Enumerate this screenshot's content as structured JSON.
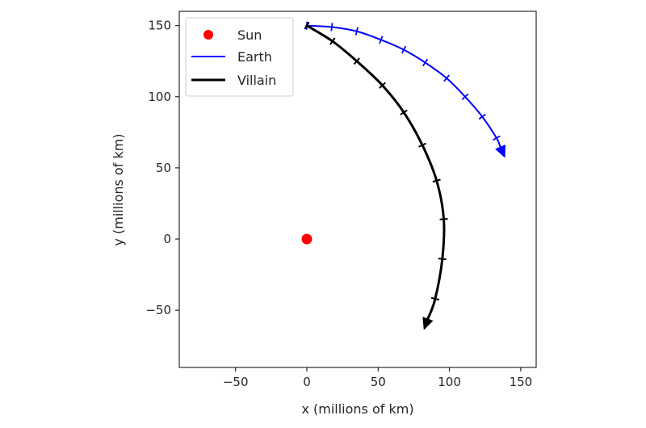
{
  "chart_data": {
    "type": "line",
    "title": "",
    "xlabel": "x (millions of km)",
    "ylabel": "y (millions of km)",
    "xlim": [
      -90,
      160
    ],
    "ylim": [
      -90,
      160
    ],
    "x_ticks": [
      -50,
      0,
      50,
      100,
      150
    ],
    "x_tick_labels": [
      "−50",
      "0",
      "50",
      "100",
      "150"
    ],
    "y_ticks": [
      -50,
      0,
      50,
      100,
      150
    ],
    "y_tick_labels": [
      "−50",
      "0",
      "50",
      "100",
      "150"
    ],
    "grid": false,
    "legend_position": "upper left",
    "legend": [
      "Sun",
      "Earth",
      "Villain"
    ],
    "series": [
      {
        "name": "Sun",
        "kind": "scatter",
        "color": "#ff0000",
        "points": [
          [
            0,
            0
          ]
        ]
      },
      {
        "name": "Earth",
        "kind": "line-arrow",
        "color": "#0000ff",
        "points": [
          [
            0,
            150
          ],
          [
            17.5,
            149
          ],
          [
            35,
            146
          ],
          [
            52,
            140
          ],
          [
            68,
            133
          ],
          [
            83,
            124
          ],
          [
            98,
            113
          ],
          [
            111,
            100
          ],
          [
            123,
            86
          ],
          [
            133,
            71
          ],
          [
            139,
            57
          ]
        ],
        "markers": [
          [
            0,
            150
          ],
          [
            17.5,
            149
          ],
          [
            35,
            146
          ],
          [
            52,
            140
          ],
          [
            68,
            133
          ],
          [
            83,
            124
          ],
          [
            98,
            113
          ],
          [
            111,
            100
          ],
          [
            123,
            86
          ],
          [
            133,
            71
          ]
        ]
      },
      {
        "name": "Villain",
        "kind": "line-arrow",
        "color": "#000000",
        "points": [
          [
            0,
            150
          ],
          [
            18,
            139
          ],
          [
            35,
            125
          ],
          [
            53,
            108
          ],
          [
            68,
            89
          ],
          [
            81,
            66
          ],
          [
            91,
            41
          ],
          [
            96,
            14
          ],
          [
            95,
            -14
          ],
          [
            90,
            -42
          ],
          [
            82,
            -64
          ]
        ],
        "markers": [
          [
            0,
            150
          ],
          [
            18,
            139
          ],
          [
            35,
            125
          ],
          [
            53,
            108
          ],
          [
            68,
            89
          ],
          [
            81,
            66
          ],
          [
            91,
            41
          ],
          [
            96,
            14
          ],
          [
            95,
            -14
          ],
          [
            90,
            -42
          ]
        ]
      }
    ]
  },
  "legend": {
    "items": [
      {
        "label": "Sun",
        "color": "#ff0000",
        "marker": "dot"
      },
      {
        "label": "Earth",
        "color": "#0000ff",
        "marker": "line"
      },
      {
        "label": "Villain",
        "color": "#000000",
        "marker": "thick-line"
      }
    ]
  },
  "axes": {
    "xlabel": "x (millions of km)",
    "ylabel": "y (millions of km)",
    "x_tick_labels": [
      "−50",
      "0",
      "50",
      "100",
      "150"
    ],
    "y_tick_labels": [
      "−50",
      "0",
      "50",
      "100",
      "150"
    ]
  }
}
